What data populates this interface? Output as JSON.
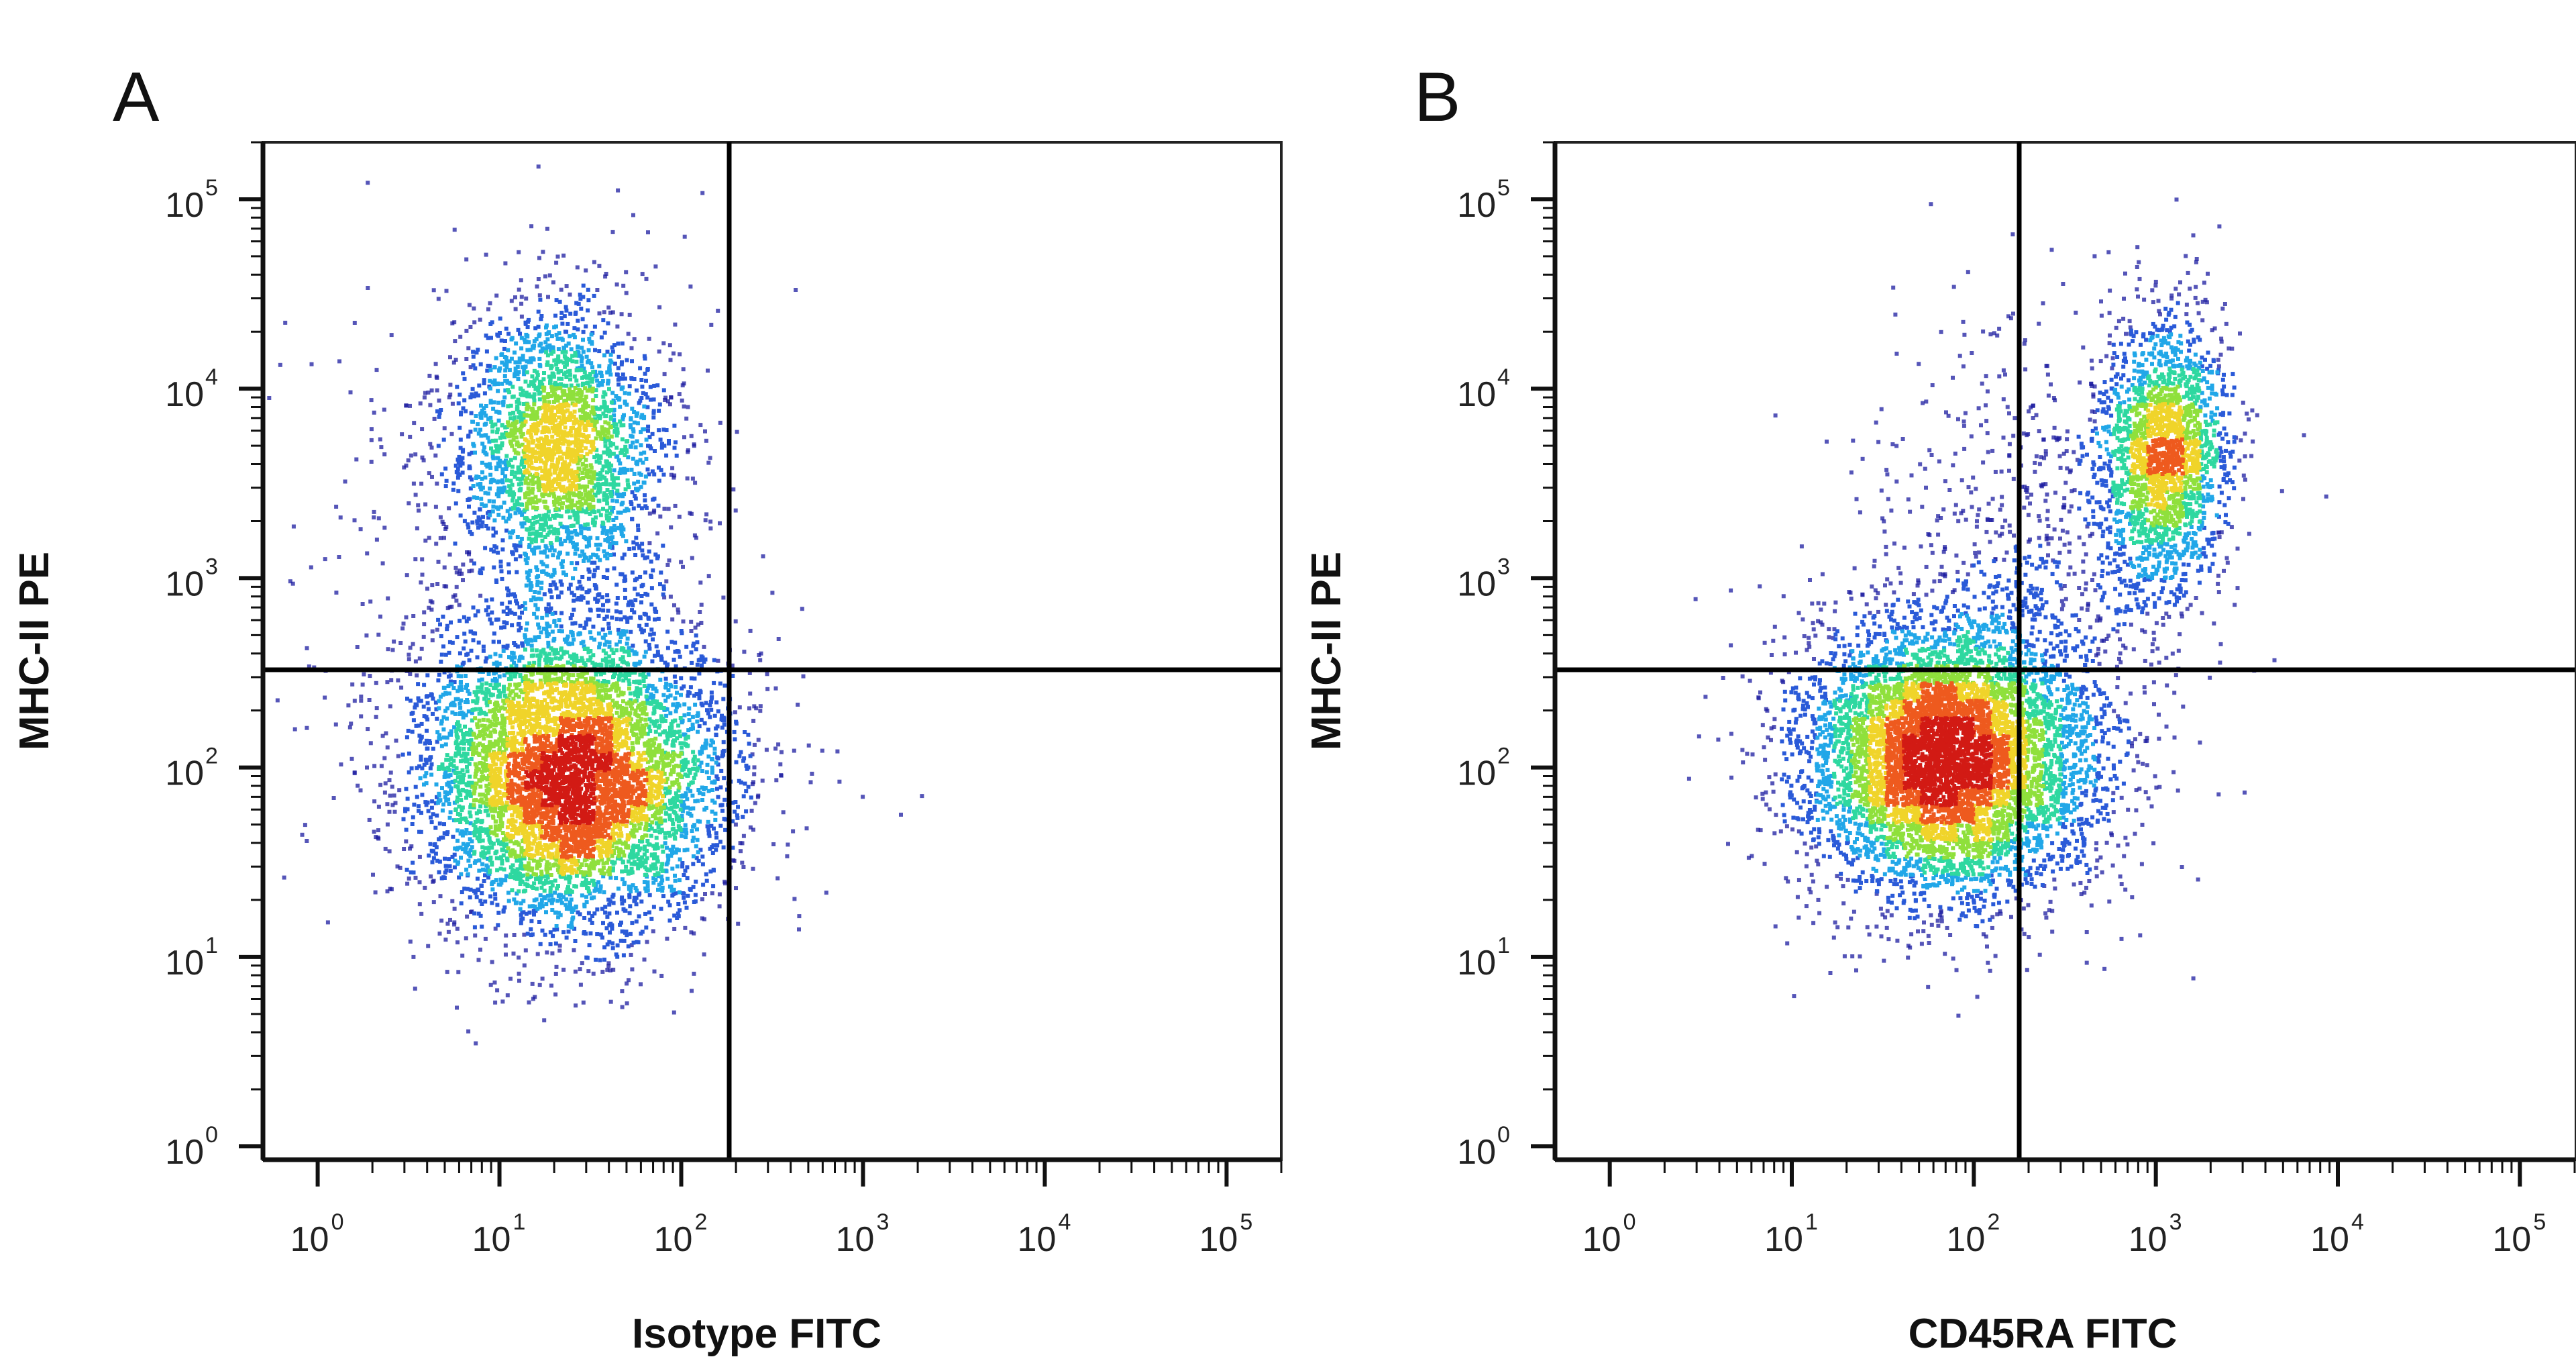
{
  "chart_data": [
    {
      "type": "scatter",
      "panel_label": "A",
      "xlabel": "Isotype FITC",
      "ylabel": "MHC-II PE",
      "x_scale": "log",
      "y_scale": "log",
      "xlim": [
        0.5,
        200000
      ],
      "ylim": [
        0.85,
        200000
      ],
      "x_ticks": [
        {
          "base": "10",
          "exp": "0",
          "value": 1
        },
        {
          "base": "10",
          "exp": "1",
          "value": 10
        },
        {
          "base": "10",
          "exp": "2",
          "value": 100
        },
        {
          "base": "10",
          "exp": "3",
          "value": 1000
        },
        {
          "base": "10",
          "exp": "4",
          "value": 10000
        },
        {
          "base": "10",
          "exp": "5",
          "value": 100000
        }
      ],
      "y_ticks": [
        {
          "base": "10",
          "exp": "0",
          "value": 1
        },
        {
          "base": "10",
          "exp": "1",
          "value": 10
        },
        {
          "base": "10",
          "exp": "2",
          "value": 100
        },
        {
          "base": "10",
          "exp": "3",
          "value": 1000
        },
        {
          "base": "10",
          "exp": "4",
          "value": 10000
        },
        {
          "base": "10",
          "exp": "5",
          "value": 100000
        }
      ],
      "gate_x": 250,
      "gate_y": 350,
      "populations": [
        {
          "center": [
            25,
            90
          ],
          "spread": [
            0.42,
            0.4
          ],
          "weight": 0.66
        },
        {
          "center": [
            22,
            5000
          ],
          "spread": [
            0.28,
            0.36
          ],
          "weight": 0.26
        },
        {
          "center": [
            15,
            1500
          ],
          "spread": [
            0.55,
            0.75
          ],
          "weight": 0.08
        }
      ],
      "colormap": [
        "#1c1ca0",
        "#2a5ad8",
        "#21a7e8",
        "#2ed8a0",
        "#8fe03c",
        "#f0d42a",
        "#ee5a1e",
        "#d21a14"
      ],
      "grid": false,
      "legend": "none"
    },
    {
      "type": "scatter",
      "panel_label": "B",
      "xlabel": "CD45RA FITC",
      "ylabel": "MHC-II PE",
      "x_scale": "log",
      "y_scale": "log",
      "xlim": [
        0.5,
        200000
      ],
      "ylim": [
        0.85,
        200000
      ],
      "x_ticks": [
        {
          "base": "10",
          "exp": "0",
          "value": 1
        },
        {
          "base": "10",
          "exp": "1",
          "value": 10
        },
        {
          "base": "10",
          "exp": "2",
          "value": 100
        },
        {
          "base": "10",
          "exp": "3",
          "value": 1000
        },
        {
          "base": "10",
          "exp": "4",
          "value": 10000
        },
        {
          "base": "10",
          "exp": "5",
          "value": 100000
        }
      ],
      "y_ticks": [
        {
          "base": "10",
          "exp": "0",
          "value": 1
        },
        {
          "base": "10",
          "exp": "1",
          "value": 10
        },
        {
          "base": "10",
          "exp": "2",
          "value": 100
        },
        {
          "base": "10",
          "exp": "3",
          "value": 1000
        },
        {
          "base": "10",
          "exp": "4",
          "value": 10000
        },
        {
          "base": "10",
          "exp": "5",
          "value": 100000
        }
      ],
      "gate_x": 250,
      "gate_y": 350,
      "populations": [
        {
          "center": [
            70,
            110
          ],
          "spread": [
            0.4,
            0.36
          ],
          "weight": 0.68
        },
        {
          "center": [
            1100,
            4500
          ],
          "spread": [
            0.17,
            0.36
          ],
          "weight": 0.22
        },
        {
          "center": [
            200,
            900
          ],
          "spread": [
            0.45,
            0.7
          ],
          "weight": 0.1
        }
      ],
      "colormap": [
        "#1c1ca0",
        "#2a5ad8",
        "#21a7e8",
        "#2ed8a0",
        "#8fe03c",
        "#f0d42a",
        "#ee5a1e",
        "#d21a14"
      ],
      "grid": false,
      "legend": "none"
    }
  ]
}
